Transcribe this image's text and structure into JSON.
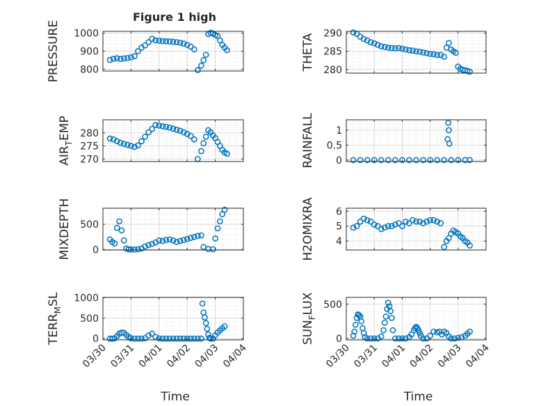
{
  "figure_title": "Figure 1 high",
  "colors": {
    "marker": "#0072BD",
    "axis": "#262626",
    "grid": "#d9d9d9",
    "minor_grid": "#e6e6e6"
  },
  "date_ticks": [
    "03/30",
    "03/31",
    "04/01",
    "04/02",
    "04/03",
    "04/04"
  ],
  "chart_data": [
    {
      "type": "scatter",
      "title": "Figure 1 high",
      "ylabel": "PRESSURE",
      "xlabel": "",
      "ylim": [
        790,
        1010
      ],
      "yticks": [
        800,
        900,
        1000
      ],
      "xlim": [
        "03/30",
        "04/04"
      ],
      "grid": true,
      "x": [
        "03/30 06:00",
        "03/30 09:00",
        "03/30 12:00",
        "03/30 15:00",
        "03/30 18:00",
        "03/30 21:00",
        "03/31 00:00",
        "03/31 03:00",
        "03/31 06:00",
        "03/31 09:00",
        "03/31 12:00",
        "03/31 15:00",
        "03/31 18:00",
        "03/31 21:00",
        "04/01 00:00",
        "04/01 03:00",
        "04/01 06:00",
        "04/01 09:00",
        "04/01 12:00",
        "04/01 15:00",
        "04/01 18:00",
        "04/01 21:00",
        "04/02 00:00",
        "04/02 03:00",
        "04/02 06:00",
        "04/02 09:00",
        "04/02 12:00",
        "04/02 14:00",
        "04/02 16:00",
        "04/02 18:00",
        "04/02 20:00",
        "04/02 22:00",
        "04/03 00:00",
        "04/03 02:00",
        "04/03 04:00",
        "04/03 06:00",
        "04/03 08:00",
        "04/03 10:00"
      ],
      "y": [
        852,
        858,
        861,
        857,
        860,
        862,
        866,
        872,
        900,
        920,
        932,
        950,
        968,
        960,
        958,
        956,
        955,
        954,
        952,
        950,
        947,
        942,
        935,
        925,
        910,
        795,
        820,
        850,
        880,
        995,
        1002,
        998,
        990,
        985,
        960,
        935,
        920,
        905
      ]
    },
    {
      "type": "scatter",
      "ylabel": "THETA",
      "xlabel": "",
      "ylim": [
        279,
        290.5
      ],
      "yticks": [
        280,
        285,
        290
      ],
      "xlim": [
        "03/30",
        "04/04"
      ],
      "grid": true,
      "x": [
        "03/30 06:00",
        "03/30 09:00",
        "03/30 12:00",
        "03/30 15:00",
        "03/30 18:00",
        "03/30 21:00",
        "03/31 00:00",
        "03/31 03:00",
        "03/31 06:00",
        "03/31 09:00",
        "03/31 12:00",
        "03/31 15:00",
        "03/31 18:00",
        "03/31 21:00",
        "04/01 00:00",
        "04/01 03:00",
        "04/01 06:00",
        "04/01 09:00",
        "04/01 12:00",
        "04/01 15:00",
        "04/01 18:00",
        "04/01 21:00",
        "04/02 00:00",
        "04/02 03:00",
        "04/02 06:00",
        "04/02 09:00",
        "04/02 12:00",
        "04/02 14:00",
        "04/02 16:00",
        "04/02 18:00",
        "04/02 20:00",
        "04/02 22:00",
        "04/03 00:00",
        "04/03 02:00",
        "04/03 04:00",
        "04/03 06:00",
        "04/03 08:00",
        "04/03 10:00"
      ],
      "y": [
        290.2,
        289.8,
        289.0,
        288.4,
        288.0,
        287.5,
        287.2,
        286.8,
        286.4,
        286.2,
        286.0,
        285.9,
        285.8,
        285.9,
        285.7,
        285.5,
        285.3,
        285.2,
        285.0,
        284.9,
        284.7,
        284.5,
        284.3,
        284.2,
        284.0,
        284.0,
        283.5,
        286.0,
        287.3,
        285.5,
        285.0,
        284.6,
        280.8,
        280.2,
        279.9,
        279.8,
        279.6,
        279.4
      ]
    },
    {
      "type": "scatter",
      "ylabel": "AIR_TEMP",
      "xlabel": "",
      "ylim": [
        269,
        285
      ],
      "yticks": [
        270,
        275,
        280
      ],
      "xlim": [
        "03/30",
        "04/04"
      ],
      "grid": true,
      "x": [
        "03/30 06:00",
        "03/30 09:00",
        "03/30 12:00",
        "03/30 15:00",
        "03/30 18:00",
        "03/30 21:00",
        "03/31 00:00",
        "03/31 03:00",
        "03/31 06:00",
        "03/31 09:00",
        "03/31 12:00",
        "03/31 15:00",
        "03/31 18:00",
        "03/31 21:00",
        "04/01 00:00",
        "04/01 03:00",
        "04/01 06:00",
        "04/01 09:00",
        "04/01 12:00",
        "04/01 15:00",
        "04/01 18:00",
        "04/01 21:00",
        "04/02 00:00",
        "04/02 03:00",
        "04/02 06:00",
        "04/02 09:00",
        "04/02 12:00",
        "04/02 14:00",
        "04/02 16:00",
        "04/02 18:00",
        "04/02 20:00",
        "04/02 22:00",
        "04/03 00:00",
        "04/03 02:00",
        "04/03 04:00",
        "04/03 06:00",
        "04/03 08:00",
        "04/03 10:00"
      ],
      "y": [
        277.8,
        277.5,
        276.8,
        276.2,
        275.8,
        275.4,
        275.0,
        274.6,
        275.2,
        276.8,
        278.5,
        280.2,
        281.5,
        283.0,
        282.8,
        282.5,
        282.3,
        282.0,
        281.6,
        281.2,
        280.8,
        280.2,
        279.6,
        278.8,
        277.5,
        270.0,
        273.0,
        276.0,
        278.5,
        281.0,
        280.2,
        279.0,
        278.0,
        276.5,
        275.0,
        273.5,
        272.5,
        272.0
      ]
    },
    {
      "type": "scatter",
      "ylabel": "RAINFALL",
      "xlabel": "",
      "ylim": [
        -0.05,
        1.35
      ],
      "yticks": [
        0,
        0.5,
        1
      ],
      "xlim": [
        "03/30",
        "04/04"
      ],
      "grid": true,
      "x": [
        "03/30 06:00",
        "03/30 12:00",
        "03/30 18:00",
        "03/31 00:00",
        "03/31 06:00",
        "03/31 12:00",
        "03/31 18:00",
        "04/01 00:00",
        "04/01 06:00",
        "04/01 12:00",
        "04/01 18:00",
        "04/02 00:00",
        "04/02 06:00",
        "04/02 12:00",
        "04/02 15:00",
        "04/02 15:30",
        "04/02 16:00",
        "04/02 16:30",
        "04/02 18:00",
        "04/03 00:00",
        "04/03 06:00",
        "04/03 10:00"
      ],
      "y": [
        0,
        0,
        0,
        0,
        0,
        0,
        0,
        0,
        0,
        0,
        0,
        0,
        0,
        0,
        0.7,
        1.25,
        1.0,
        0.55,
        0,
        0,
        0,
        0
      ]
    },
    {
      "type": "scatter",
      "ylabel": "MIXDEPTH",
      "xlabel": "",
      "ylim": [
        -10,
        820
      ],
      "yticks": [
        0,
        500
      ],
      "xlim": [
        "03/30",
        "04/04"
      ],
      "grid": true,
      "x": [
        "03/30 06:00",
        "03/30 08:00",
        "03/30 10:00",
        "03/30 12:00",
        "03/30 14:00",
        "03/30 16:00",
        "03/30 18:00",
        "03/30 20:00",
        "03/30 22:00",
        "03/31 00:00",
        "03/31 03:00",
        "03/31 06:00",
        "03/31 09:00",
        "03/31 12:00",
        "03/31 15:00",
        "03/31 18:00",
        "03/31 21:00",
        "04/01 00:00",
        "04/01 03:00",
        "04/01 06:00",
        "04/01 09:00",
        "04/01 12:00",
        "04/01 15:00",
        "04/01 18:00",
        "04/01 21:00",
        "04/02 00:00",
        "04/02 03:00",
        "04/02 06:00",
        "04/02 09:00",
        "04/02 12:00",
        "04/02 14:00",
        "04/02 18:00",
        "04/02 22:00",
        "04/03 00:00",
        "04/03 02:00",
        "04/03 04:00",
        "04/03 06:00",
        "04/03 08:00"
      ],
      "y": [
        200,
        150,
        120,
        430,
        560,
        380,
        180,
        20,
        5,
        0,
        0,
        5,
        20,
        60,
        90,
        110,
        140,
        180,
        170,
        190,
        200,
        180,
        150,
        170,
        190,
        210,
        230,
        250,
        270,
        280,
        50,
        10,
        5,
        220,
        420,
        560,
        700,
        790
      ]
    },
    {
      "type": "scatter",
      "ylabel": "H2OMIXRA",
      "xlabel": "",
      "ylim": [
        3.4,
        6.2
      ],
      "yticks": [
        4,
        5,
        6
      ],
      "xlim": [
        "03/30",
        "04/04"
      ],
      "grid": true,
      "x": [
        "03/30 06:00",
        "03/30 09:00",
        "03/30 12:00",
        "03/30 15:00",
        "03/30 18:00",
        "03/30 21:00",
        "03/31 00:00",
        "03/31 03:00",
        "03/31 06:00",
        "03/31 09:00",
        "03/31 12:00",
        "03/31 15:00",
        "03/31 18:00",
        "03/31 21:00",
        "04/01 00:00",
        "04/01 03:00",
        "04/01 06:00",
        "04/01 09:00",
        "04/01 12:00",
        "04/01 15:00",
        "04/01 18:00",
        "04/01 21:00",
        "04/02 00:00",
        "04/02 03:00",
        "04/02 06:00",
        "04/02 09:00",
        "04/02 12:00",
        "04/02 14:00",
        "04/02 16:00",
        "04/02 18:00",
        "04/02 20:00",
        "04/02 22:00",
        "04/03 00:00",
        "04/03 02:00",
        "04/03 04:00",
        "04/03 06:00",
        "04/03 08:00",
        "04/03 10:00"
      ],
      "y": [
        4.9,
        5.0,
        5.3,
        5.5,
        5.4,
        5.3,
        5.1,
        5.0,
        4.8,
        4.9,
        5.0,
        5.0,
        5.1,
        5.2,
        5.0,
        5.3,
        5.2,
        5.4,
        5.3,
        5.3,
        5.2,
        5.3,
        5.4,
        5.4,
        5.3,
        5.2,
        3.6,
        4.0,
        4.2,
        4.5,
        4.7,
        4.6,
        4.5,
        4.3,
        4.2,
        4.0,
        3.9,
        3.7
      ]
    },
    {
      "type": "scatter",
      "ylabel": "TERR_MSL",
      "xlabel": "Time",
      "ylim": [
        -30,
        1010
      ],
      "yticks": [
        0,
        500,
        1000
      ],
      "xlim": [
        "03/30",
        "04/04"
      ],
      "xticks": [
        "03/30",
        "03/31",
        "04/01",
        "04/02",
        "04/03",
        "04/04"
      ],
      "grid": true,
      "x": [
        "03/30 06:00",
        "03/30 08:00",
        "03/30 10:00",
        "03/30 12:00",
        "03/30 14:00",
        "03/30 16:00",
        "03/30 18:00",
        "03/30 20:00",
        "03/30 22:00",
        "03/31 00:00",
        "03/31 03:00",
        "03/31 06:00",
        "03/31 09:00",
        "03/31 12:00",
        "03/31 15:00",
        "03/31 18:00",
        "03/31 21:00",
        "04/01 00:00",
        "04/01 03:00",
        "04/01 06:00",
        "04/01 09:00",
        "04/01 12:00",
        "04/01 15:00",
        "04/01 18:00",
        "04/01 21:00",
        "04/02 00:00",
        "04/02 03:00",
        "04/02 06:00",
        "04/02 09:00",
        "04/02 12:00",
        "04/02 13:00",
        "04/02 14:00",
        "04/02 15:00",
        "04/02 16:00",
        "04/02 17:00",
        "04/02 18:00",
        "04/02 19:00",
        "04/02 20:00",
        "04/02 22:00",
        "04/03 00:00",
        "04/03 02:00",
        "04/03 04:00",
        "04/03 06:00",
        "04/03 08:00"
      ],
      "y": [
        0,
        0,
        5,
        60,
        120,
        150,
        140,
        90,
        40,
        10,
        0,
        0,
        0,
        10,
        80,
        120,
        40,
        5,
        0,
        0,
        0,
        0,
        0,
        0,
        0,
        0,
        0,
        0,
        0,
        0,
        860,
        640,
        520,
        380,
        240,
        100,
        20,
        0,
        0,
        80,
        150,
        200,
        250,
        300
      ]
    },
    {
      "type": "scatter",
      "ylabel": "SUN_FLUX",
      "xlabel": "Time",
      "ylim": [
        -20,
        600
      ],
      "yticks": [
        0,
        500
      ],
      "xlim": [
        "03/30",
        "04/04"
      ],
      "xticks": [
        "03/30",
        "03/31",
        "04/01",
        "04/02",
        "04/03",
        "04/04"
      ],
      "grid": true,
      "x": [
        "03/30 06:00",
        "03/30 07:00",
        "03/30 08:00",
        "03/30 09:00",
        "03/30 10:00",
        "03/30 11:00",
        "03/30 12:00",
        "03/30 13:00",
        "03/30 14:00",
        "03/30 15:00",
        "03/30 16:00",
        "03/30 18:00",
        "03/30 21:00",
        "03/31 00:00",
        "03/31 03:00",
        "03/31 06:00",
        "03/31 08:00",
        "03/31 09:00",
        "03/31 10:00",
        "03/31 11:00",
        "03/31 12:00",
        "03/31 13:00",
        "03/31 14:00",
        "03/31 15:00",
        "03/31 16:00",
        "03/31 18:00",
        "03/31 21:00",
        "04/01 00:00",
        "04/01 03:00",
        "04/01 06:00",
        "04/01 08:00",
        "04/01 10:00",
        "04/01 11:00",
        "04/01 12:00",
        "04/01 13:00",
        "04/01 14:00",
        "04/01 15:00",
        "04/01 16:00",
        "04/01 18:00",
        "04/01 21:00",
        "04/02 00:00",
        "04/02 03:00",
        "04/02 06:00",
        "04/02 08:00",
        "04/02 10:00",
        "04/02 12:00",
        "04/02 14:00",
        "04/02 16:00",
        "04/02 18:00",
        "04/02 21:00",
        "04/03 00:00",
        "04/03 03:00",
        "04/03 06:00",
        "04/03 08:00",
        "04/03 10:00"
      ],
      "y": [
        40,
        100,
        200,
        300,
        350,
        340,
        320,
        250,
        150,
        80,
        20,
        0,
        0,
        0,
        0,
        30,
        120,
        230,
        320,
        430,
        520,
        470,
        400,
        300,
        120,
        0,
        0,
        0,
        0,
        20,
        60,
        120,
        150,
        170,
        150,
        120,
        80,
        40,
        0,
        0,
        40,
        100,
        90,
        100,
        60,
        100,
        80,
        30,
        0,
        0,
        10,
        20,
        40,
        70,
        100
      ]
    }
  ]
}
